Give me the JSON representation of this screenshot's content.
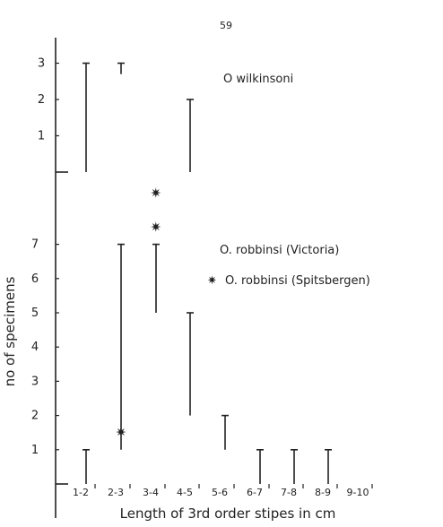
{
  "page_number": "59",
  "chart_data": {
    "type": "range",
    "xlabel": "Length of 3rd order stipes in cm",
    "ylabel": "no of specimens",
    "categories": [
      "1-2",
      "2-3",
      "3-4",
      "4-5",
      "5-6",
      "6-7",
      "7-8",
      "8-9",
      "9-10"
    ],
    "panels": [
      {
        "series": [
          {
            "name": "O wilkinsoni",
            "marker": "line",
            "ranges": [
              {
                "category": "1-2",
                "low": 0,
                "high": 3
              },
              {
                "category": "2-3",
                "low": 2.7,
                "high": 3
              },
              {
                "category": "4-5",
                "low": 0,
                "high": 2
              }
            ]
          }
        ],
        "y_ticks": [
          "1",
          "2",
          "3"
        ],
        "ylim": [
          0,
          3.4
        ]
      },
      {
        "series": [
          {
            "name": "O. robbinsi (Victoria)",
            "marker": "line",
            "ranges": [
              {
                "category": "1-2",
                "low": 0,
                "high": 1
              },
              {
                "category": "2-3",
                "low": 1,
                "high": 7
              },
              {
                "category": "3-4",
                "low": 5,
                "high": 7
              },
              {
                "category": "4-5",
                "low": 2,
                "high": 5
              },
              {
                "category": "5-6",
                "low": 1,
                "high": 2
              },
              {
                "category": "6-7",
                "low": 0,
                "high": 1
              },
              {
                "category": "7-8",
                "low": 0,
                "high": 1
              },
              {
                "category": "8-9",
                "low": 0,
                "high": 1
              }
            ]
          },
          {
            "name": "O. robbinsi (Spitsbergen)",
            "marker": "✷",
            "points": [
              {
                "x": 2.5,
                "y": 1.5
              },
              {
                "x": 3.5,
                "y": 7.5
              },
              {
                "x": 3.5,
                "y": 8.5
              }
            ]
          }
        ],
        "y_ticks": [
          "1",
          "2",
          "3",
          "4",
          "5",
          "6",
          "7"
        ],
        "ylim": [
          0,
          9
        ]
      }
    ]
  }
}
